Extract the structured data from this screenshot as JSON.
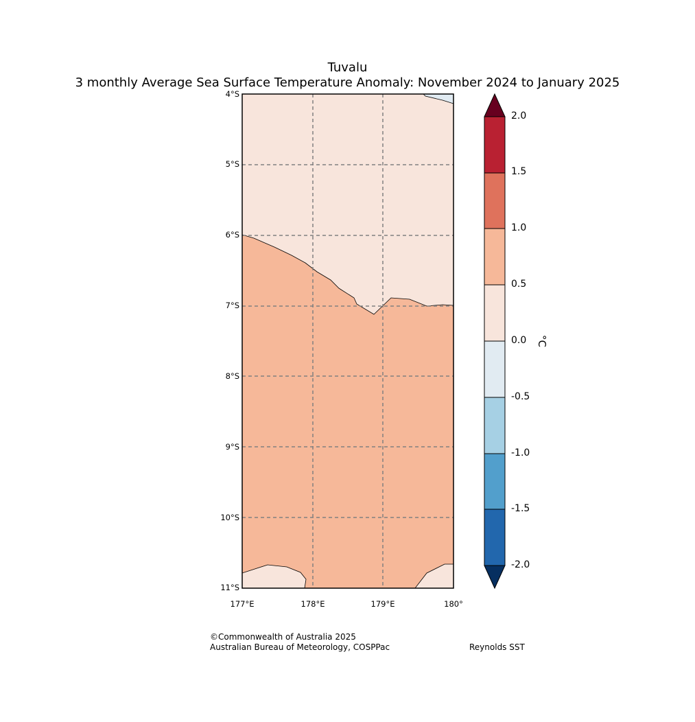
{
  "title": "Tuvalu",
  "subtitle": "3 monthly Average Sea Surface Temperature Anomaly: November 2024 to January 2025",
  "lat_labels": [
    "4°S",
    "5°S",
    "6°S",
    "7°S",
    "8°S",
    "9°S",
    "10°S",
    "11°S"
  ],
  "lon_labels": [
    "177°E",
    "178°E",
    "179°E",
    "180°"
  ],
  "colorbar": {
    "unit": "°C",
    "labels": [
      "2.0",
      "1.5",
      "1.0",
      "0.5",
      "0.0",
      "-0.5",
      "-1.0",
      "-1.5",
      "-2.0"
    ],
    "bins": [
      {
        "range": "> 2.0",
        "color": "#67001f"
      },
      {
        "range": "1.5 to 2.0",
        "color": "#b92132"
      },
      {
        "range": "1.0 to 1.5",
        "color": "#df725c"
      },
      {
        "range": "0.5 to 1.0",
        "color": "#f6b899"
      },
      {
        "range": "0.0 to 0.5",
        "color": "#f8e5dc"
      },
      {
        "range": "-0.5 to 0.0",
        "color": "#e1ebf2"
      },
      {
        "range": "-1.0 to -0.5",
        "color": "#a6d0e4"
      },
      {
        "range": "-1.5 to -1.0",
        "color": "#529fcc"
      },
      {
        "range": "-2.0 to -1.5",
        "color": "#2267ad"
      },
      {
        "range": "< -2.0",
        "color": "#062f60"
      }
    ]
  },
  "credits": {
    "copyright": "©Commonwealth of Australia 2025",
    "agency": "Australian Bureau of Meteorology, COSPPac",
    "source": "Reynolds SST"
  }
}
